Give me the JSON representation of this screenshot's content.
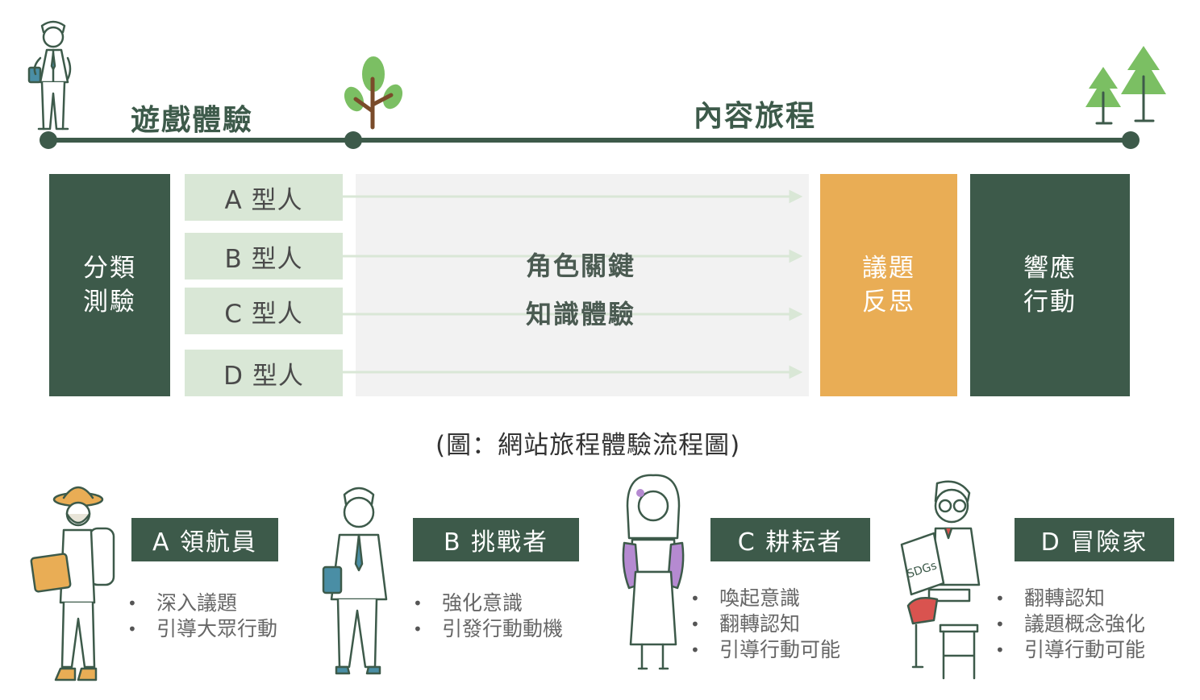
{
  "timeline": {
    "stage1_label": "遊戲體驗",
    "stage2_label": "內容旅程"
  },
  "flow": {
    "classify_test": "分類\n測驗",
    "types": [
      "A 型人",
      "B 型人",
      "C 型人",
      "D 型人"
    ],
    "middle_line1": "角色關鍵",
    "middle_line2": "知識體驗",
    "issue_reflect": "議題\n反思",
    "respond_action": "響應\n行動"
  },
  "caption": "(圖：網站旅程體驗流程圖)",
  "personas": [
    {
      "title": "A 領航員",
      "bullets": [
        "深入議題",
        "引導大眾行動"
      ]
    },
    {
      "title": "B 挑戰者",
      "bullets": [
        "強化意識",
        "引發行動動機"
      ]
    },
    {
      "title": "C 耕耘者",
      "bullets": [
        "喚起意識",
        "翻轉認知",
        "引導行動可能"
      ]
    },
    {
      "title": "D 冒險家",
      "bullets": [
        "翻轉認知",
        "議題概念強化",
        "引導行動可能"
      ]
    }
  ],
  "colors": {
    "dark_green": "#3d5a4a",
    "light_green": "#d9e7d6",
    "orange": "#e9ad55",
    "grey_area": "#f2f2f2"
  },
  "icons": [
    "traveler-man-icon",
    "sprout-tree-icon",
    "pine-trees-icon",
    "hiker-icon",
    "businessman-icon",
    "woman-icon",
    "reading-man-icon",
    "arrow-icon"
  ]
}
